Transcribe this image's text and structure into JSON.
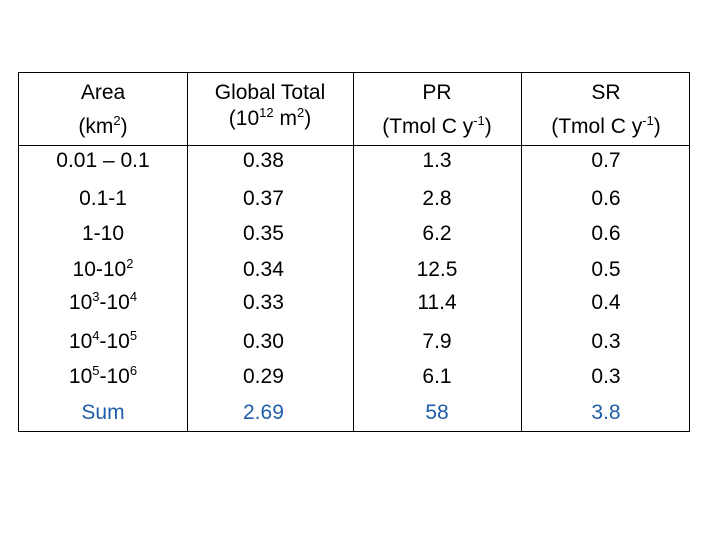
{
  "table": {
    "headers": [
      {
        "line1": "Area",
        "line2_pre": "(km",
        "line2_sup": "2",
        "line2_post": ")"
      },
      {
        "line1": "Global Total",
        "line2_pre": "(10",
        "line2_sup": "12",
        "line2_mid": " m",
        "line2_sup2": "2",
        "line2_post": ")"
      },
      {
        "line1": "PR",
        "line2_pre": "(Tmol C y",
        "line2_sup": "-1",
        "line2_post": ")"
      },
      {
        "line1": "SR",
        "line2_pre": "(Tmol C y",
        "line2_sup": "-1",
        "line2_post": ")"
      }
    ],
    "rows": [
      {
        "area": {
          "a": "0.01 – 0.1"
        },
        "global": "0.38",
        "pr": "1.3",
        "sr": "0.7"
      },
      {
        "area": {
          "a": "0.1-1"
        },
        "global": "0.37",
        "pr": "2.8",
        "sr": "0.6"
      },
      {
        "area": {
          "a": "1-10"
        },
        "global": "0.35",
        "pr": "6.2",
        "sr": "0.6"
      },
      {
        "area": {
          "a": "10-10",
          "a_sup": "2"
        },
        "global": "0.34",
        "pr": "12.5",
        "sr": "0.5"
      },
      {
        "area": {
          "a": "10",
          "a_sup": "3",
          "b": "-10",
          "b_sup": "4"
        },
        "global": "0.33",
        "pr": "11.4",
        "sr": "0.4"
      },
      {
        "area": {
          "a": "10",
          "a_sup": "4",
          "b": "-10",
          "b_sup": "5"
        },
        "global": "0.30",
        "pr": "7.9",
        "sr": "0.3"
      },
      {
        "area": {
          "a": "10",
          "a_sup": "5",
          "b": "-10",
          "b_sup": "6"
        },
        "global": "0.29",
        "pr": "6.1",
        "sr": "0.3"
      }
    ],
    "sum_row": {
      "label": "Sum",
      "global": "2.69",
      "pr": "58",
      "sr": "3.8"
    },
    "sum_color": "#1f5ea8"
  }
}
